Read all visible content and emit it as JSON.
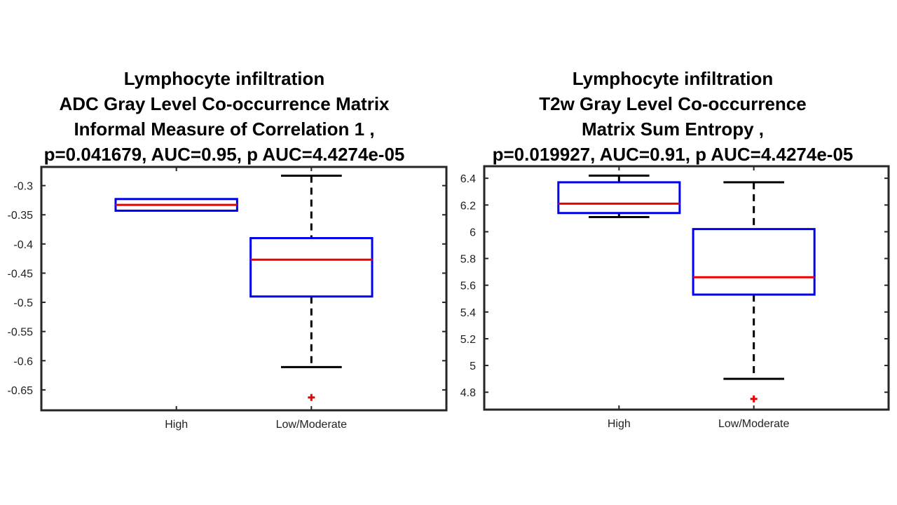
{
  "colors": {
    "box": "#0000ee",
    "median": "#ee0000",
    "whisker": "#000000",
    "outlier": "#ee0000",
    "axis": "#262626"
  },
  "chart_data": [
    {
      "type": "box",
      "title_lines": [
        "Lymphocyte infiltration",
        "ADC Gray Level Co-occurrence Matrix",
        "Informal Measure of Correlation 1 ,",
        "p=0.041679, AUC=0.95, p AUC=4.4274e-05"
      ],
      "categories": [
        "High",
        "Low/Moderate"
      ],
      "ylim": [
        -0.685,
        -0.268
      ],
      "yticks": [
        -0.3,
        -0.35,
        -0.4,
        -0.45,
        -0.5,
        -0.55,
        -0.6,
        -0.65
      ],
      "ytick_labels": [
        "-0.3",
        "-0.35",
        "-0.4",
        "-0.45",
        "-0.5",
        "-0.55",
        "-0.6",
        "-0.65"
      ],
      "boxes": [
        {
          "category": "High",
          "whisker_low": -0.343,
          "q1": -0.343,
          "median": -0.333,
          "q3": -0.323,
          "whisker_high": -0.323,
          "outliers": []
        },
        {
          "category": "Low/Moderate",
          "whisker_low": -0.611,
          "q1": -0.49,
          "median": -0.427,
          "q3": -0.39,
          "whisker_high": -0.283,
          "outliers": [
            -0.663
          ]
        }
      ]
    },
    {
      "type": "box",
      "title_lines": [
        "Lymphocyte infiltration",
        "T2w Gray Level Co-occurrence",
        "Matrix Sum Entropy ,",
        "p=0.019927, AUC=0.91, p AUC=4.4274e-05"
      ],
      "categories": [
        "High",
        "Low/Moderate"
      ],
      "ylim": [
        4.67,
        6.49
      ],
      "yticks": [
        6.4,
        6.2,
        6,
        5.8,
        5.6,
        5.4,
        5.2,
        5,
        4.8
      ],
      "ytick_labels": [
        "6.4",
        "6.2",
        "6",
        "5.8",
        "5.6",
        "5.4",
        "5.2",
        "5",
        "4.8"
      ],
      "boxes": [
        {
          "category": "High",
          "whisker_low": 6.11,
          "q1": 6.14,
          "median": 6.21,
          "q3": 6.37,
          "whisker_high": 6.42,
          "outliers": []
        },
        {
          "category": "Low/Moderate",
          "whisker_low": 4.9,
          "q1": 5.53,
          "median": 5.66,
          "q3": 6.02,
          "whisker_high": 6.37,
          "outliers": [
            4.75
          ]
        }
      ]
    }
  ]
}
